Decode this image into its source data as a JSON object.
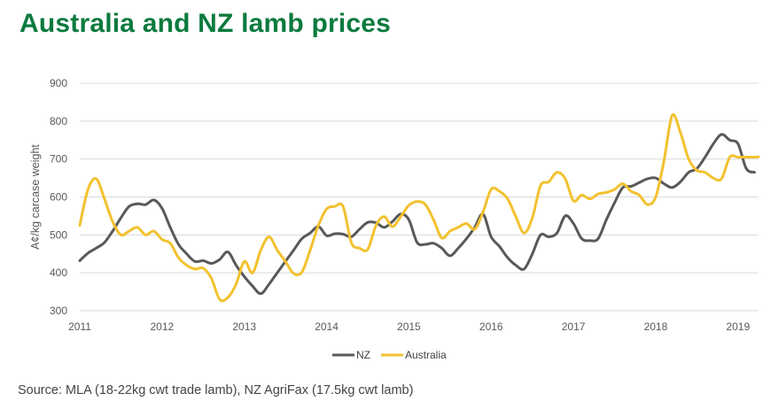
{
  "title": "Australia and NZ lamb prices",
  "source": "Source: MLA (18-22kg cwt trade lamb), NZ AgriFax (17.5kg cwt lamb)",
  "colors": {
    "title": "#0b7a3e",
    "nz": "#595959",
    "australia": "#f2c12e",
    "grid": "#d9d9d9"
  },
  "chart_data": {
    "type": "line",
    "title": "Australia and NZ lamb prices",
    "ylabel": "A¢/kg carcase weight",
    "xlabel": "",
    "xlim": [
      2011.0,
      2019.25
    ],
    "ylim": [
      300,
      900
    ],
    "yticks": [
      300,
      400,
      500,
      600,
      700,
      800,
      900
    ],
    "xticks": [
      2011,
      2012,
      2013,
      2014,
      2015,
      2016,
      2017,
      2018,
      2019
    ],
    "xtick_labels": [
      "2011",
      "2012",
      "2013",
      "2014",
      "2015",
      "2016",
      "2017",
      "2018",
      "2019"
    ],
    "grid": "horizontal",
    "legend_position": "bottom",
    "series": [
      {
        "name": "NZ",
        "color": "#595959",
        "x": [
          2011.0,
          2011.1,
          2011.2,
          2011.3,
          2011.4,
          2011.5,
          2011.6,
          2011.7,
          2011.8,
          2011.9,
          2012.0,
          2012.1,
          2012.2,
          2012.3,
          2012.4,
          2012.5,
          2012.6,
          2012.7,
          2012.8,
          2012.9,
          2013.0,
          2013.1,
          2013.2,
          2013.3,
          2013.4,
          2013.5,
          2013.6,
          2013.7,
          2013.8,
          2013.9,
          2014.0,
          2014.1,
          2014.2,
          2014.3,
          2014.4,
          2014.5,
          2014.6,
          2014.7,
          2014.8,
          2014.9,
          2015.0,
          2015.1,
          2015.2,
          2015.3,
          2015.4,
          2015.5,
          2015.6,
          2015.7,
          2015.8,
          2015.9,
          2016.0,
          2016.1,
          2016.2,
          2016.3,
          2016.4,
          2016.5,
          2016.6,
          2016.7,
          2016.8,
          2016.9,
          2017.0,
          2017.1,
          2017.2,
          2017.3,
          2017.4,
          2017.5,
          2017.6,
          2017.7,
          2017.8,
          2017.9,
          2018.0,
          2018.1,
          2018.2,
          2018.3,
          2018.4,
          2018.5,
          2018.6,
          2018.7,
          2018.8,
          2018.9,
          2019.0,
          2019.1,
          2019.2
        ],
        "values": [
          432,
          452,
          465,
          480,
          510,
          545,
          575,
          582,
          580,
          592,
          570,
          520,
          475,
          450,
          430,
          432,
          425,
          435,
          455,
          420,
          390,
          365,
          345,
          370,
          400,
          430,
          460,
          490,
          505,
          522,
          498,
          503,
          502,
          495,
          515,
          533,
          532,
          520,
          535,
          555,
          540,
          480,
          475,
          478,
          465,
          445,
          465,
          490,
          520,
          555,
          495,
          470,
          440,
          420,
          410,
          450,
          500,
          495,
          505,
          550,
          530,
          490,
          485,
          490,
          540,
          585,
          625,
          628,
          638,
          648,
          650,
          635,
          625,
          640,
          665,
          675,
          705,
          740,
          765,
          750,
          740,
          675,
          665
        ]
      },
      {
        "name": "Australia",
        "color": "#f2c12e",
        "x": [
          2011.0,
          2011.1,
          2011.2,
          2011.3,
          2011.4,
          2011.5,
          2011.6,
          2011.7,
          2011.8,
          2011.9,
          2012.0,
          2012.1,
          2012.2,
          2012.3,
          2012.4,
          2012.5,
          2012.6,
          2012.7,
          2012.8,
          2012.9,
          2013.0,
          2013.1,
          2013.2,
          2013.3,
          2013.4,
          2013.5,
          2013.6,
          2013.7,
          2013.8,
          2013.9,
          2014.0,
          2014.1,
          2014.2,
          2014.3,
          2014.4,
          2014.5,
          2014.6,
          2014.7,
          2014.8,
          2014.9,
          2015.0,
          2015.1,
          2015.2,
          2015.3,
          2015.4,
          2015.5,
          2015.6,
          2015.7,
          2015.8,
          2015.9,
          2016.0,
          2016.1,
          2016.2,
          2016.3,
          2016.4,
          2016.5,
          2016.6,
          2016.7,
          2016.8,
          2016.9,
          2017.0,
          2017.1,
          2017.2,
          2017.3,
          2017.4,
          2017.5,
          2017.6,
          2017.7,
          2017.8,
          2017.9,
          2018.0,
          2018.1,
          2018.2,
          2018.3,
          2018.4,
          2018.5,
          2018.6,
          2018.7,
          2018.8,
          2018.9,
          2019.0,
          2019.1,
          2019.2,
          2019.25
        ],
        "values": [
          525,
          620,
          648,
          595,
          535,
          500,
          510,
          520,
          500,
          510,
          488,
          478,
          440,
          420,
          410,
          412,
          385,
          330,
          335,
          370,
          430,
          400,
          460,
          495,
          460,
          430,
          398,
          402,
          460,
          525,
          568,
          575,
          575,
          480,
          465,
          462,
          525,
          548,
          522,
          548,
          578,
          588,
          580,
          540,
          492,
          510,
          520,
          530,
          515,
          560,
          620,
          615,
          595,
          548,
          505,
          545,
          630,
          640,
          665,
          648,
          590,
          605,
          595,
          608,
          612,
          620,
          635,
          615,
          605,
          580,
          600,
          695,
          815,
          770,
          700,
          670,
          665,
          650,
          648,
          705,
          705,
          705,
          705,
          706
        ]
      }
    ]
  }
}
